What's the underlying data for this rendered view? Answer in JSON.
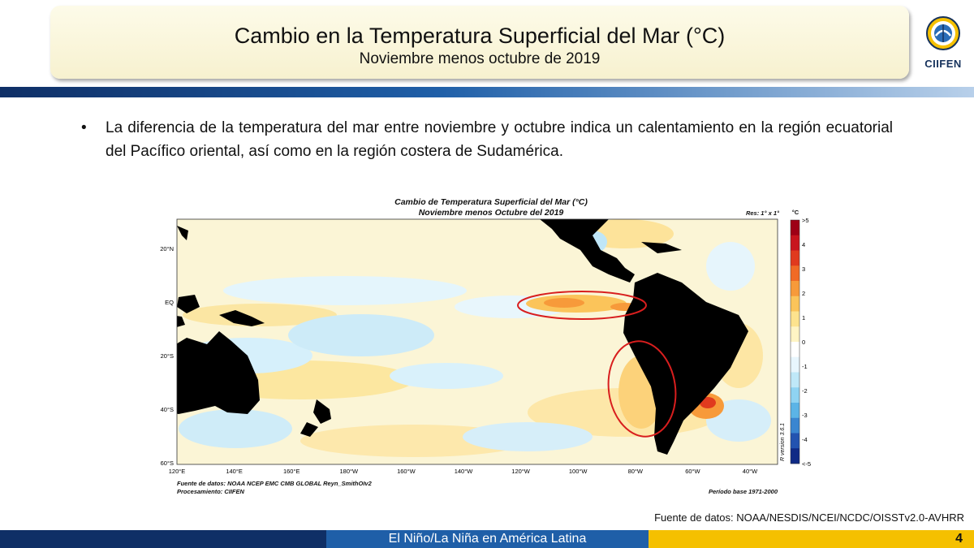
{
  "slide": {
    "title": "Cambio en la Temperatura Superficial del Mar (°C)",
    "subtitle": "Noviembre menos octubre de 2019",
    "logo_text": "CIIFEN",
    "bullet": "La diferencia de la temperatura del mar entre noviembre y octubre indica un calentamiento en la región ecuatorial del Pacífico oriental, así como en la región costera de Sudamérica.",
    "source": "Fuente de datos: NOAA/NESDIS/NCEI/NCDC/OISSTv2.0-AVHRR",
    "footer_text": "El Niño/La Niña en América Latina",
    "page_number": "4"
  },
  "map": {
    "title": "Cambio de Temperatura Superficial del Mar (°C)",
    "subtitle": "Noviembre menos Octubre del 2019",
    "resolution": "Res: 1° x 1°",
    "unit": "°C",
    "lat_labels": [
      "20°N",
      "EQ",
      "20°S",
      "40°S",
      "60°S"
    ],
    "lon_labels": [
      "120°E",
      "140°E",
      "160°E",
      "180°W",
      "160°W",
      "140°W",
      "120°W",
      "100°W",
      "80°W",
      "60°W",
      "40°W"
    ],
    "colorbar_labels": [
      ">5",
      "4",
      "3",
      "2",
      "1",
      "0",
      "-1",
      "-2",
      "-3",
      "-4",
      "<-5"
    ],
    "colorbar_colors": [
      "#9e0016",
      "#c8141e",
      "#e03a1e",
      "#f06a26",
      "#f79a3a",
      "#fbc45a",
      "#fde38e",
      "#fff4c4",
      "#ffffff",
      "#e8f6fd",
      "#bfe8f8",
      "#8fd3f2",
      "#5cb4e6",
      "#3b86d0",
      "#2353b0",
      "#0f2a86"
    ],
    "source": "Fuente de datos: NOAA NCEP EMC CMB GLOBAL Reyn_SmithOIv2",
    "processing": "Procesamiento: CIIFEN",
    "period": "Período base 1971-2000",
    "version": "R version 3.6.1"
  },
  "colors": {
    "dark_blue": "#0f2f66",
    "mid_blue": "#1f5fa8",
    "gold": "#f5c000",
    "highlight_ring": "#d81e1e"
  }
}
